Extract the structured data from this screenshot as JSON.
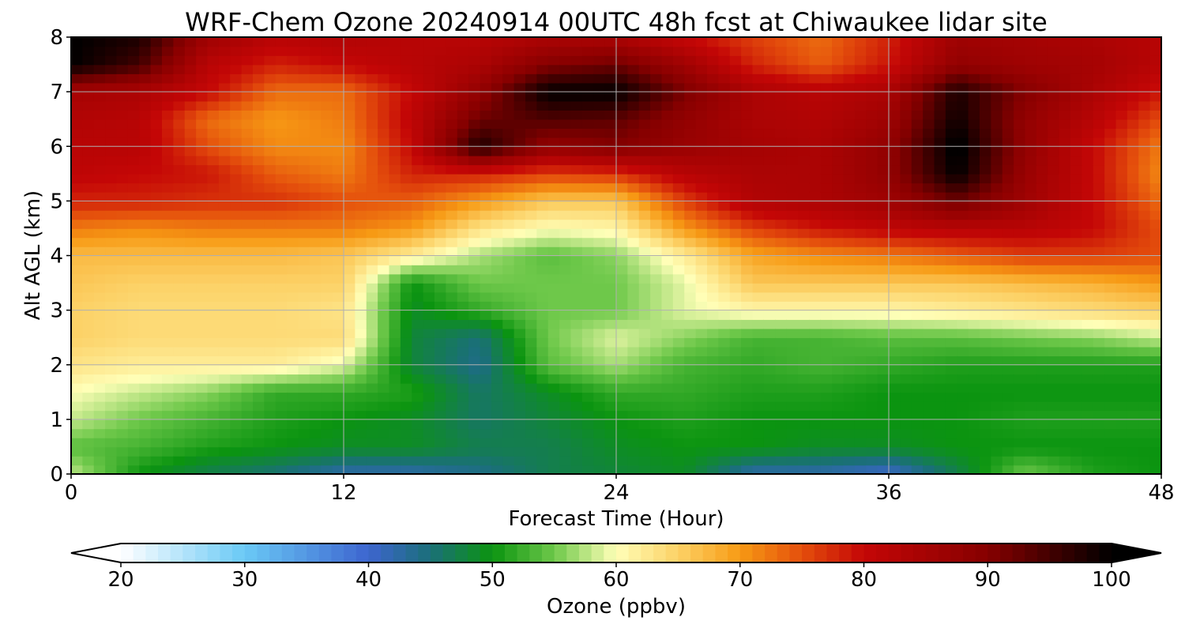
{
  "chart_data": {
    "type": "heatmap",
    "title": "WRF-Chem Ozone  20240914 00UTC 48h fcst at Chiwaukee lidar site",
    "xlabel": "Forecast Time (Hour)",
    "ylabel": "Alt AGL (km)",
    "xlim": [
      0,
      48
    ],
    "ylim": [
      0,
      8
    ],
    "x_ticks": [
      0,
      12,
      24,
      36,
      48
    ],
    "y_ticks": [
      0,
      1,
      2,
      3,
      4,
      5,
      6,
      7,
      8
    ],
    "grid": true,
    "x": [
      0,
      3,
      6,
      9,
      12,
      15,
      18,
      21,
      24,
      27,
      30,
      33,
      36,
      39,
      42,
      45,
      48
    ],
    "y": [
      0,
      0.5,
      1,
      1.5,
      2,
      2.5,
      3,
      3.5,
      4,
      4.5,
      5,
      5.5,
      6,
      6.5,
      7,
      7.5,
      8
    ],
    "z": [
      [
        58,
        50,
        47,
        45,
        42,
        42,
        44,
        47,
        48,
        49,
        42,
        42,
        40,
        47,
        55,
        51,
        50
      ],
      [
        54,
        53,
        51,
        50,
        49,
        49,
        47,
        47,
        49,
        50,
        50,
        49,
        49,
        50,
        50,
        50,
        50
      ],
      [
        58,
        55,
        53,
        51,
        50,
        49,
        46,
        48,
        50,
        51,
        50,
        50,
        50,
        50,
        51,
        51,
        51
      ],
      [
        60,
        58,
        56,
        52,
        52,
        51,
        46,
        49,
        52,
        52,
        51,
        51,
        50,
        50,
        50,
        50,
        50
      ],
      [
        63,
        62,
        62,
        62,
        59,
        48,
        44,
        54,
        57,
        53,
        52,
        53,
        52,
        51,
        51,
        51,
        51
      ],
      [
        65,
        64,
        64,
        64,
        64,
        48,
        45,
        55,
        59,
        56,
        53,
        53,
        54,
        54,
        55,
        56,
        58
      ],
      [
        65,
        64,
        64,
        64,
        63,
        49,
        52,
        55,
        55,
        59,
        61,
        61,
        61,
        62,
        63,
        64,
        65
      ],
      [
        66,
        65,
        65,
        65,
        65,
        50,
        55,
        55,
        55,
        59,
        66,
        66,
        66,
        66,
        67,
        68,
        70
      ],
      [
        67,
        67,
        67,
        67,
        66,
        62,
        57,
        54,
        56,
        62,
        69,
        71,
        72,
        74,
        76,
        76,
        75
      ],
      [
        72,
        71,
        72,
        72,
        72,
        70,
        63,
        60,
        61,
        70,
        76,
        79,
        81,
        82,
        82,
        80,
        75
      ],
      [
        78,
        78,
        77,
        77,
        75,
        74,
        70,
        66,
        66,
        76,
        83,
        84,
        86,
        92,
        86,
        80,
        73
      ],
      [
        81,
        80,
        79,
        74,
        72,
        78,
        78,
        76,
        77,
        82,
        84,
        84,
        88,
        100,
        87,
        80,
        71
      ],
      [
        82,
        82,
        75,
        71,
        71,
        80,
        98,
        88,
        90,
        87,
        85,
        84,
        88,
        101,
        88,
        80,
        72
      ],
      [
        83,
        82,
        73,
        70,
        72,
        81,
        92,
        94,
        93,
        88,
        84,
        83,
        86,
        99,
        88,
        82,
        75
      ],
      [
        85,
        84,
        80,
        73,
        73,
        80,
        88,
        100,
        100,
        91,
        84,
        82,
        84,
        98,
        90,
        84,
        79
      ],
      [
        100,
        95,
        82,
        78,
        80,
        82,
        84,
        90,
        92,
        86,
        78,
        74,
        79,
        88,
        86,
        85,
        82
      ],
      [
        100,
        98,
        86,
        82,
        83,
        82,
        82,
        84,
        84,
        80,
        76,
        73,
        78,
        86,
        85,
        84,
        82
      ]
    ]
  },
  "colorbar": {
    "label": "Ozone  (ppbv)",
    "min": 20,
    "max": 100,
    "ticks": [
      20,
      30,
      40,
      50,
      60,
      70,
      80,
      90,
      100
    ],
    "extend": "both",
    "stops": [
      {
        "v": 20,
        "c": "#ffffff"
      },
      {
        "v": 30,
        "c": "#6ac9f6"
      },
      {
        "v": 40,
        "c": "#3d65cf"
      },
      {
        "v": 45,
        "c": "#1a6f78"
      },
      {
        "v": 50,
        "c": "#0b9410"
      },
      {
        "v": 55,
        "c": "#6ec84a"
      },
      {
        "v": 60,
        "c": "#ffffb8"
      },
      {
        "v": 65,
        "c": "#fcd166"
      },
      {
        "v": 70,
        "c": "#f79a14"
      },
      {
        "v": 75,
        "c": "#e44e0c"
      },
      {
        "v": 80,
        "c": "#c40606"
      },
      {
        "v": 90,
        "c": "#860000"
      },
      {
        "v": 100,
        "c": "#000000"
      }
    ]
  }
}
